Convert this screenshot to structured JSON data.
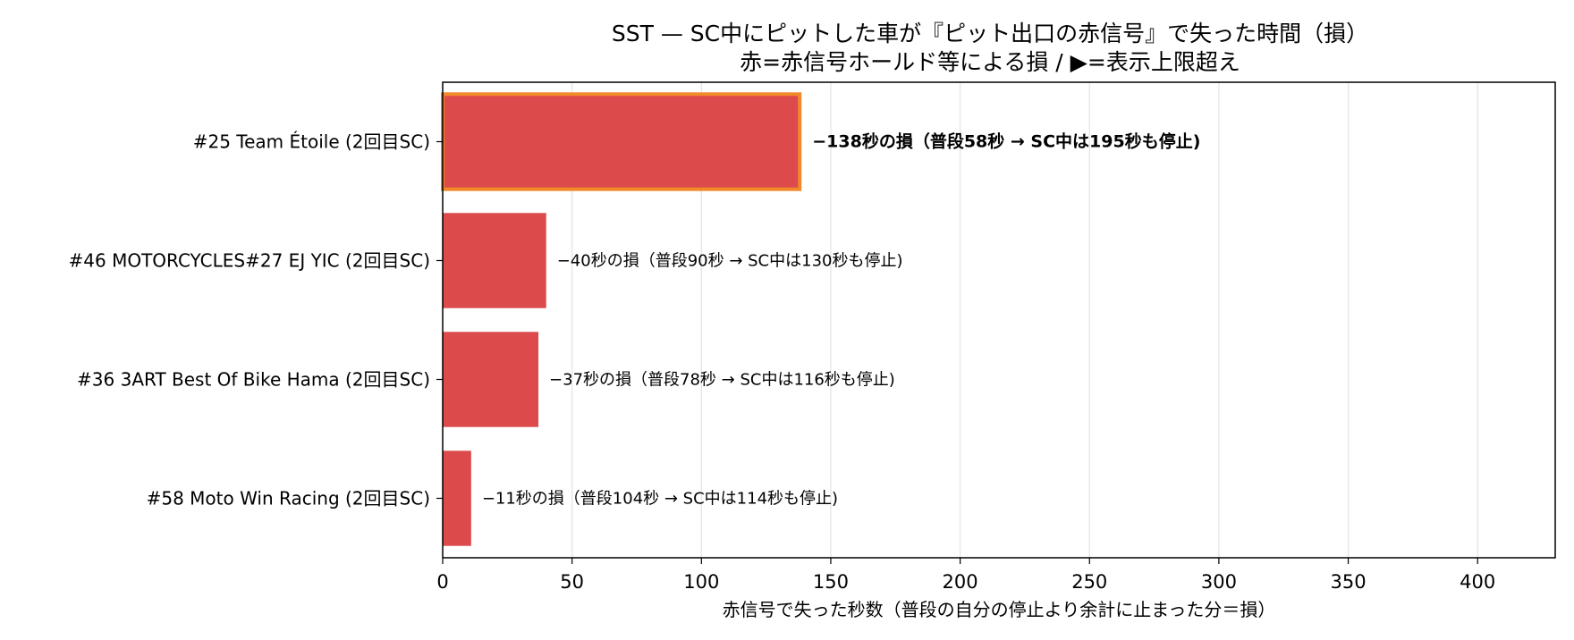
{
  "chart_data": {
    "type": "bar",
    "orientation": "horizontal",
    "title": "SST — SC中にピットした車が『ピット出口の赤信号』で失った時間（損）",
    "subtitle": "赤=赤信号ホールド等による損 / ▶=表示上限超え",
    "xlabel": "赤信号で失った秒数（普段の自分の停止より余計に止まった分＝損）",
    "ylabel": "",
    "xlim": [
      0,
      430
    ],
    "xticks": [
      0,
      50,
      100,
      150,
      200,
      250,
      300,
      350,
      400
    ],
    "grid": "x",
    "bar_color": "#dc4a4c",
    "highlight_color": "#f28a2b",
    "categories": [
      "#25 Team Étoile  (2回目SC)",
      "#46 MOTORCYCLES#27 EJ YIC  (2回目SC)",
      "#36 3ART Best Of Bike Hama  (2回目SC)",
      "#58 Moto Win Racing  (2回目SC)"
    ],
    "values": [
      138,
      40,
      37,
      11
    ],
    "highlight": [
      true,
      false,
      false,
      false
    ],
    "annotations": [
      "−138秒の損（普段58秒 → SC中は195秒も停止)",
      "−40秒の損（普段90秒 → SC中は130秒も停止)",
      "−37秒の損（普段78秒 → SC中は116秒も停止)",
      "−11秒の損（普段104秒 → SC中は114秒も停止)"
    ]
  }
}
